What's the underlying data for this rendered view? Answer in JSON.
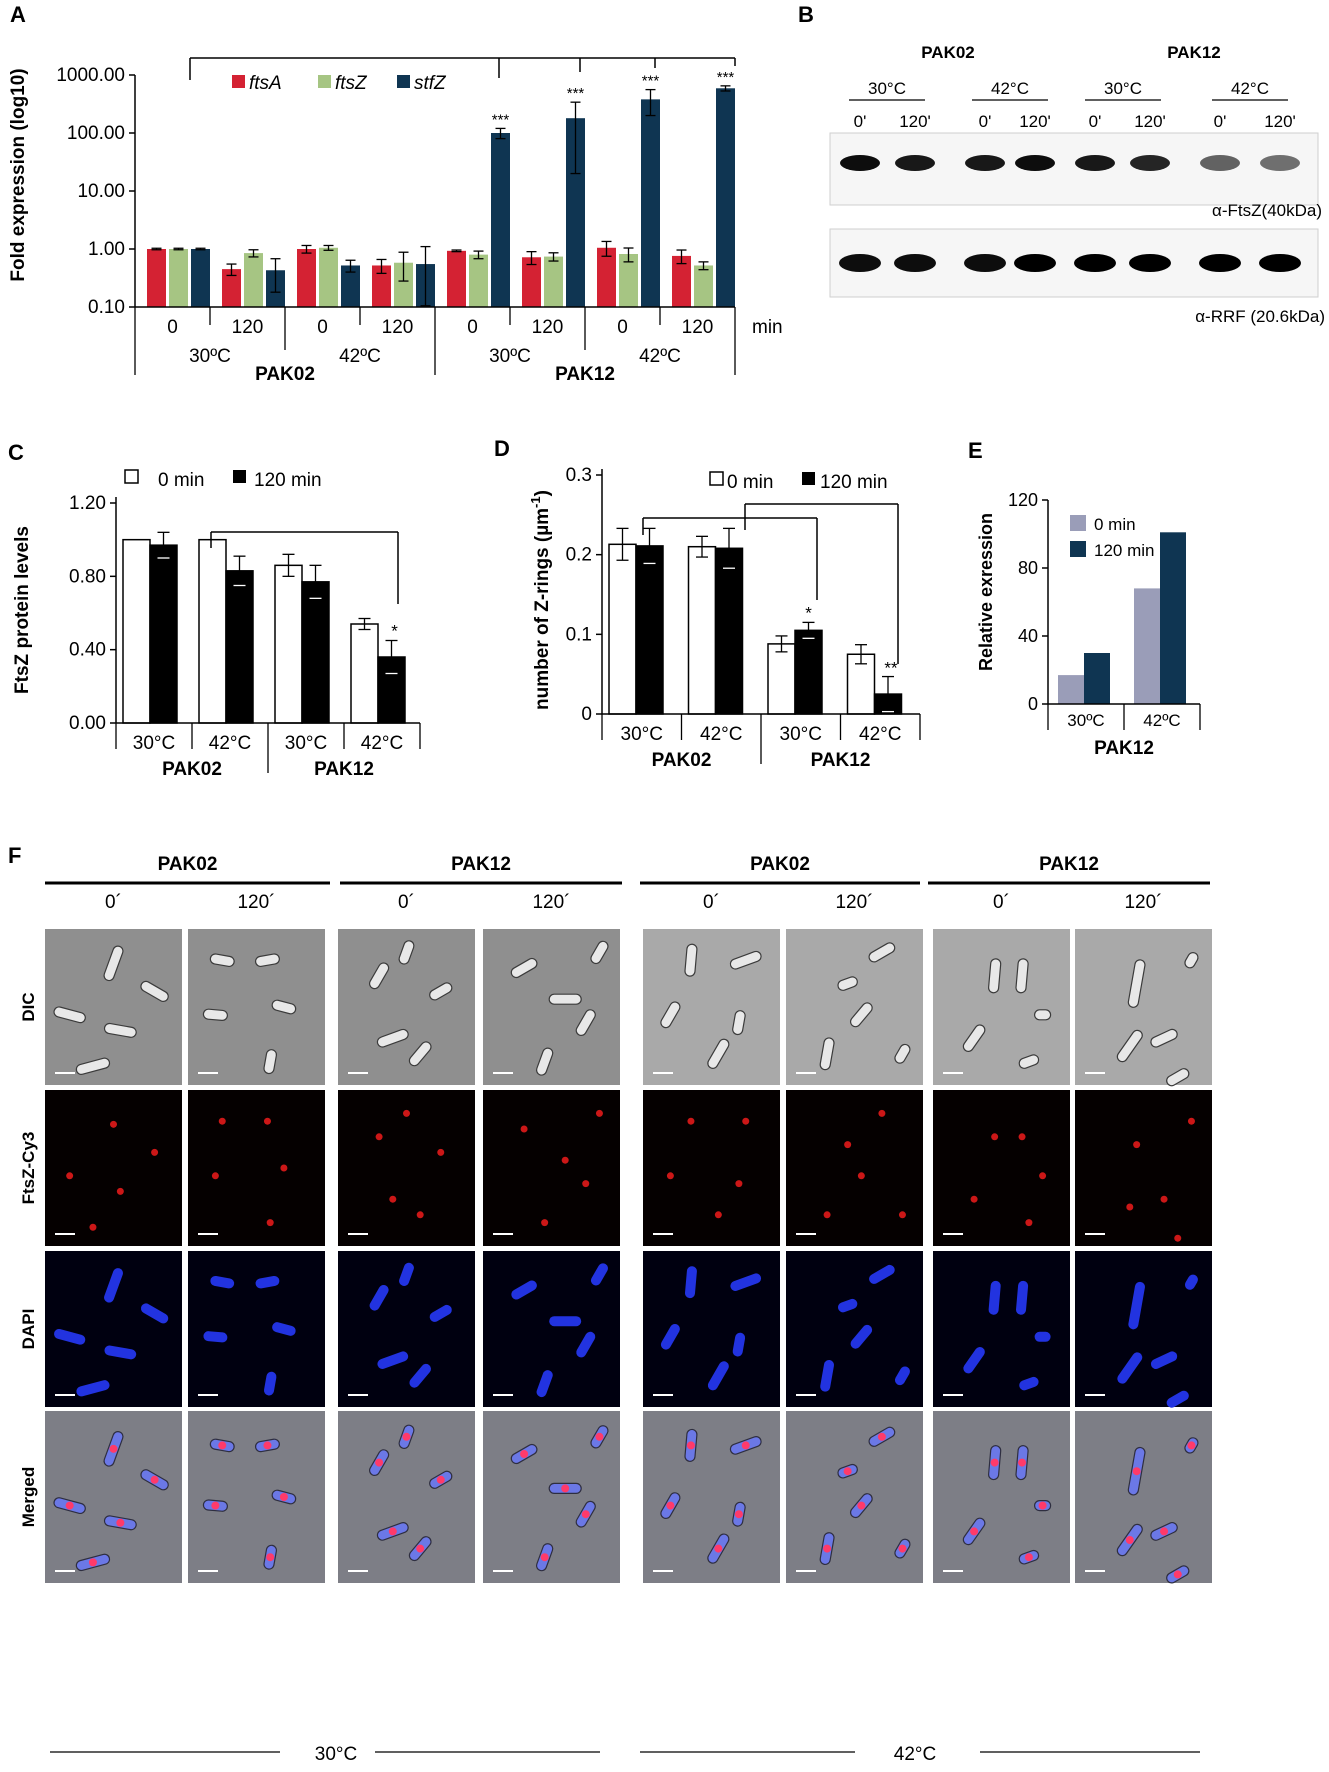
{
  "panel_labels": {
    "a": "A",
    "b": "B",
    "c": "C",
    "d": "D",
    "e": "E",
    "f": "F"
  },
  "colors": {
    "ftsA": "#d42233",
    "ftsZ": "#a6c583",
    "stfZ": "#0f3552",
    "e_0min": "#9a9db8",
    "e_120min": "#0f3552",
    "fluor_red": "#e21a1a",
    "dapi_blue": "#2233e0"
  },
  "chart_data": [
    {
      "panel": "A",
      "type": "bar",
      "scale": "log",
      "ylabel": "Fold expression (log10)",
      "yticks": [
        "1000.00",
        "100.00",
        "10.00",
        "1.00",
        "0.10"
      ],
      "ylim": [
        0.1,
        1000
      ],
      "categories": [
        "0",
        "120",
        "0",
        "120",
        "0",
        "120",
        "0",
        "120"
      ],
      "temps": [
        "30ºC",
        "42ºC",
        "30ºC",
        "42ºC"
      ],
      "strains": [
        "PAK02",
        "PAK12"
      ],
      "unit": "min",
      "series": [
        {
          "name": "ftsA",
          "values": [
            1.0,
            0.45,
            1.0,
            0.52,
            0.93,
            0.72,
            1.05,
            0.76
          ],
          "err": [
            0.03,
            0.1,
            0.15,
            0.14,
            0.03,
            0.18,
            0.3,
            0.2
          ]
        },
        {
          "name": "ftsZ",
          "values": [
            1.0,
            0.85,
            1.05,
            0.58,
            0.8,
            0.74,
            0.82,
            0.52
          ],
          "err": [
            0.03,
            0.12,
            0.1,
            0.3,
            0.12,
            0.12,
            0.22,
            0.08
          ]
        },
        {
          "name": "stfZ",
          "values": [
            1.0,
            0.43,
            0.52,
            0.55,
            100,
            180,
            380,
            590
          ],
          "err": [
            0.03,
            0.25,
            0.12,
            0.55,
            20,
            160,
            180,
            60
          ]
        }
      ],
      "annotations": [
        "***",
        "***",
        "***",
        "***"
      ]
    },
    {
      "panel": "C",
      "type": "bar",
      "ylabel": "FtsZ protein levels",
      "yticks": [
        "1.20",
        "0.80",
        "0.40",
        "0.00"
      ],
      "ylim": [
        0,
        1.2
      ],
      "categories": [
        "30°C",
        "42°C",
        "30°C",
        "42°C"
      ],
      "strains": [
        "PAK02",
        "PAK12"
      ],
      "series": [
        {
          "name": "0 min",
          "values": [
            1.0,
            1.0,
            0.86,
            0.54
          ],
          "err": [
            0.0,
            0.0,
            0.06,
            0.03
          ]
        },
        {
          "name": "120 min",
          "values": [
            0.97,
            0.83,
            0.77,
            0.36
          ],
          "err": [
            0.07,
            0.08,
            0.09,
            0.09
          ]
        }
      ],
      "annotations": [
        "*"
      ]
    },
    {
      "panel": "D",
      "type": "bar",
      "ylabel": "number of Z-rings (µm",
      "ylabel_sup": "-1",
      "ylabel_end": ")",
      "yticks": [
        "0.3",
        "0.2",
        "0.1",
        "0"
      ],
      "ylim": [
        0,
        0.3
      ],
      "categories": [
        "30°C",
        "42°C",
        "30°C",
        "42°C"
      ],
      "strains": [
        "PAK02",
        "PAK12"
      ],
      "series": [
        {
          "name": "0 min",
          "values": [
            0.213,
            0.21,
            0.088,
            0.075
          ],
          "err": [
            0.02,
            0.013,
            0.01,
            0.012
          ]
        },
        {
          "name": "120 min",
          "values": [
            0.211,
            0.208,
            0.105,
            0.025
          ],
          "err": [
            0.022,
            0.025,
            0.01,
            0.022
          ]
        }
      ],
      "annotations": [
        "*",
        "**"
      ]
    },
    {
      "panel": "E",
      "type": "bar",
      "ylabel": "Relative exression",
      "yticks": [
        "120",
        "80",
        "40",
        "0"
      ],
      "ylim": [
        0,
        120
      ],
      "categories": [
        "30ºC",
        "42ºC"
      ],
      "strains": [
        "PAK12"
      ],
      "series": [
        {
          "name": "0 min",
          "values": [
            17,
            68
          ]
        },
        {
          "name": "120 min",
          "values": [
            30,
            101
          ]
        }
      ]
    }
  ],
  "panelB": {
    "strains": [
      "PAK02",
      "PAK12"
    ],
    "temps": [
      "30°C",
      "42°C",
      "30°C",
      "42°C"
    ],
    "times": [
      "0'",
      "120'",
      "0'",
      "120'",
      "0'",
      "120'",
      "0'",
      "120'"
    ],
    "blot1_label": "α-FtsZ(40kDa)",
    "blot2_label": "α-RRF (20.6kDa)",
    "blot1_intensity": [
      0.95,
      0.9,
      0.9,
      0.95,
      0.9,
      0.85,
      0.6,
      0.55
    ],
    "blot2_intensity": [
      0.95,
      0.95,
      0.95,
      1.0,
      1.0,
      1.0,
      1.0,
      1.0
    ]
  },
  "panelF": {
    "strains": [
      "PAK02",
      "PAK12",
      "PAK02",
      "PAK12"
    ],
    "times": [
      "0´",
      "120´",
      "0´",
      "120´",
      "0´",
      "120´",
      "0´",
      "120´"
    ],
    "rows": [
      "DIC",
      "FtsZ-Cy3",
      "DAPI",
      "Merged"
    ],
    "temps": [
      "30°C",
      "42°C"
    ]
  }
}
